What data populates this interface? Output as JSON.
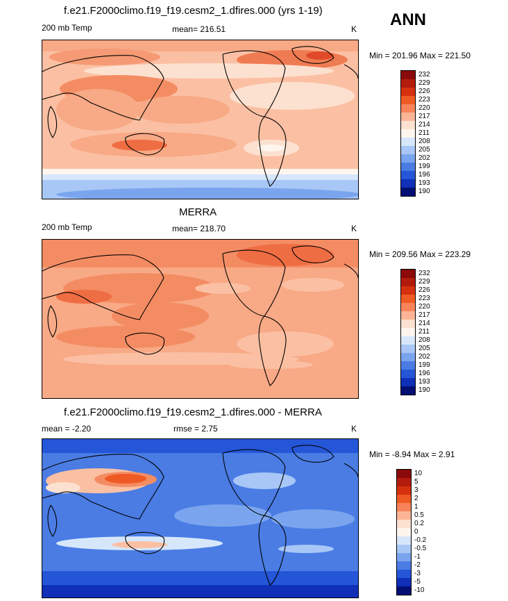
{
  "ann_label": "ANN",
  "panels": [
    {
      "title": "f.e21.F2000climo.f19_f19.cesm2_1.dfires.000 (yrs 1-19)",
      "left_label": "200 mb Temp",
      "center_label": "mean= 216.51",
      "right_label": "K",
      "minmax": "Min = 201.96 Max = 221.50"
    },
    {
      "title": "MERRA",
      "left_label": "200 mb Temp",
      "center_label": "mean= 218.70",
      "right_label": "K",
      "minmax": "Min = 209.56 Max = 223.29"
    },
    {
      "title": "f.e21.F2000climo.f19_f19.cesm2_1.dfires.000 - MERRA",
      "left_label": "mean =  -2.20",
      "center_label": "rmse =   2.75",
      "right_label": "K",
      "minmax": "Min =  -8.94 Max =   2.91"
    }
  ],
  "chart_data": [
    {
      "type": "heatmap",
      "title": "f.e21.F2000climo.f19_f19.cesm2_1.dfires.000 (yrs 1-19)",
      "variable": "200 mb Temp",
      "units": "K",
      "mean": 216.51,
      "min": 201.96,
      "max": 221.5,
      "colorbar_levels": [
        "232",
        "229",
        "226",
        "223",
        "220",
        "217",
        "214",
        "211",
        "208",
        "205",
        "202",
        "199",
        "196",
        "193",
        "190"
      ],
      "colorbar_colors": [
        "#8b0a0a",
        "#b31c0c",
        "#d6300f",
        "#ef5a24",
        "#f8835a",
        "#fbb596",
        "#fde1d0",
        "#fef6ee",
        "#d7e7fb",
        "#a9c7f6",
        "#7aa5ee",
        "#4a7ce4",
        "#2556d8",
        "#0f30b7",
        "#030f74"
      ]
    },
    {
      "type": "heatmap",
      "title": "MERRA",
      "variable": "200 mb Temp",
      "units": "K",
      "mean": 218.7,
      "min": 209.56,
      "max": 223.29,
      "colorbar_levels": [
        "232",
        "229",
        "226",
        "223",
        "220",
        "217",
        "214",
        "211",
        "208",
        "205",
        "202",
        "199",
        "196",
        "193",
        "190"
      ],
      "colorbar_colors": [
        "#8b0a0a",
        "#b31c0c",
        "#d6300f",
        "#ef5a24",
        "#f8835a",
        "#fbb596",
        "#fde1d0",
        "#fef6ee",
        "#d7e7fb",
        "#a9c7f6",
        "#7aa5ee",
        "#4a7ce4",
        "#2556d8",
        "#0f30b7",
        "#030f74"
      ]
    },
    {
      "type": "heatmap",
      "title": "f.e21.F2000climo.f19_f19.cesm2_1.dfires.000 - MERRA",
      "units": "K",
      "mean": -2.2,
      "rmse": 2.75,
      "min": -8.94,
      "max": 2.91,
      "colorbar_levels": [
        "10",
        "5",
        "3",
        "2",
        "1",
        "0.5",
        "0.2",
        "0",
        "-0.2",
        "-0.5",
        "-1",
        "-2",
        "-3",
        "-5",
        "-10"
      ],
      "colorbar_colors": [
        "#8b0a0a",
        "#b31c0c",
        "#d6300f",
        "#ef5a24",
        "#f8835a",
        "#fbb596",
        "#fde1d0",
        "#fef6ee",
        "#d7e7fb",
        "#a9c7f6",
        "#7aa5ee",
        "#4a7ce4",
        "#2556d8",
        "#0f30b7",
        "#030f74"
      ]
    }
  ]
}
